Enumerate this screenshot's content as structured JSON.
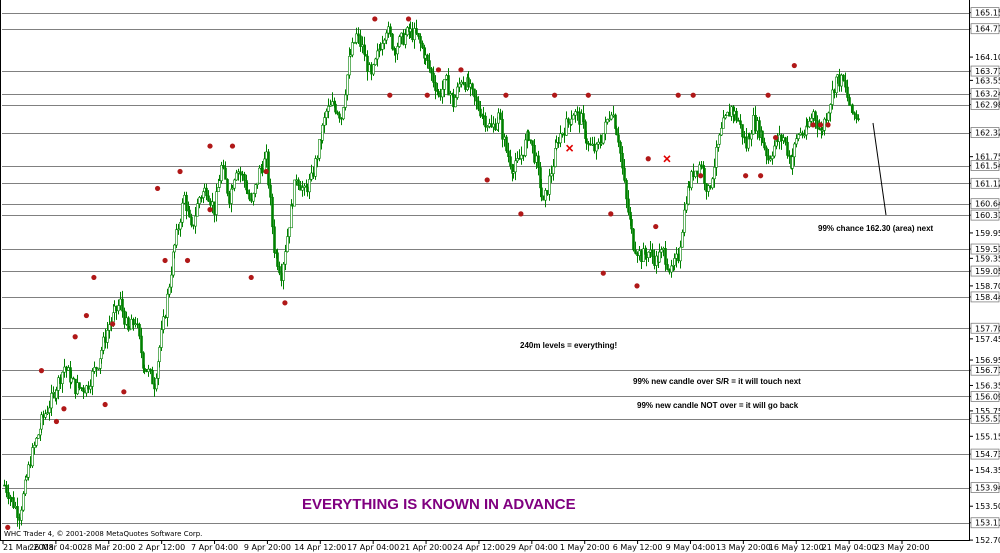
{
  "chart_data": {
    "type": "candlestick",
    "instrument_timeframe": "240m",
    "ylim": [
      152.75,
      165.4
    ],
    "grid": false,
    "y_ticks": [
      "165.15",
      "164.77",
      "164.10",
      "163.77",
      "163.55",
      "163.24",
      "162.98",
      "162.32",
      "161.75",
      "161.54",
      "161.12",
      "160.64",
      "160.37",
      "159.95",
      "159.57",
      "159.35",
      "159.05",
      "158.70",
      "158.44",
      "157.70",
      "157.45",
      "156.95",
      "156.71",
      "156.35",
      "156.09",
      "155.75",
      "155.57",
      "155.15",
      "154.73",
      "154.35",
      "153.94",
      "153.50",
      "153.11",
      "152.70"
    ],
    "x_ticks": [
      "21 Mar 2008",
      "26 Mar 04:00",
      "28 Mar 20:00",
      "2 Apr 12:00",
      "7 Apr 04:00",
      "9 Apr 20:00",
      "14 Apr 12:00",
      "17 Apr 04:00",
      "21 Apr 20:00",
      "24 Apr 12:00",
      "29 Apr 04:00",
      "1 May 20:00",
      "6 May 12:00",
      "9 May 04:00",
      "13 May 20:00",
      "16 May 12:00",
      "21 May 04:00",
      "23 May 20:00"
    ],
    "levels": [
      165.15,
      164.77,
      163.77,
      163.24,
      162.98,
      162.32,
      161.54,
      161.12,
      160.64,
      160.37,
      159.57,
      159.05,
      158.44,
      157.7,
      156.71,
      156.09,
      155.57,
      154.73,
      153.94,
      153.11
    ],
    "path_points": [
      [
        0,
        154.0
      ],
      [
        8,
        153.3
      ],
      [
        14,
        154.6
      ],
      [
        20,
        155.5
      ],
      [
        26,
        156.1
      ],
      [
        32,
        156.8
      ],
      [
        38,
        156.3
      ],
      [
        44,
        156.3
      ],
      [
        50,
        156.9
      ],
      [
        56,
        157.8
      ],
      [
        62,
        158.3
      ],
      [
        66,
        157.6
      ],
      [
        70,
        157.9
      ],
      [
        74,
        156.9
      ],
      [
        80,
        156.4
      ],
      [
        86,
        158.1
      ],
      [
        90,
        159.4
      ],
      [
        96,
        160.8
      ],
      [
        100,
        160.0
      ],
      [
        104,
        160.8
      ],
      [
        108,
        161.0
      ],
      [
        112,
        160.5
      ],
      [
        116,
        161.5
      ],
      [
        120,
        160.8
      ],
      [
        124,
        161.5
      ],
      [
        128,
        161.2
      ],
      [
        132,
        160.6
      ],
      [
        136,
        161.4
      ],
      [
        140,
        161.7
      ],
      [
        144,
        159.6
      ],
      [
        148,
        159.0
      ],
      [
        152,
        160.2
      ],
      [
        156,
        161.3
      ],
      [
        160,
        160.9
      ],
      [
        164,
        161.2
      ],
      [
        168,
        162.0
      ],
      [
        172,
        162.8
      ],
      [
        176,
        163.0
      ],
      [
        180,
        162.7
      ],
      [
        184,
        164.0
      ],
      [
        188,
        164.6
      ],
      [
        192,
        164.2
      ],
      [
        196,
        163.6
      ],
      [
        200,
        164.3
      ],
      [
        204,
        164.8
      ],
      [
        208,
        164.3
      ],
      [
        212,
        164.5
      ],
      [
        216,
        164.7
      ],
      [
        220,
        164.6
      ],
      [
        224,
        164.2
      ],
      [
        228,
        163.7
      ],
      [
        232,
        163.2
      ],
      [
        236,
        163.5
      ],
      [
        240,
        163.0
      ],
      [
        244,
        163.6
      ],
      [
        248,
        163.4
      ],
      [
        252,
        163.0
      ],
      [
        256,
        162.7
      ],
      [
        260,
        162.4
      ],
      [
        264,
        162.7
      ],
      [
        268,
        161.9
      ],
      [
        272,
        161.4
      ],
      [
        276,
        161.8
      ],
      [
        280,
        162.3
      ],
      [
        284,
        161.6
      ],
      [
        288,
        160.6
      ],
      [
        292,
        161.4
      ],
      [
        296,
        162.2
      ],
      [
        300,
        162.5
      ],
      [
        304,
        162.8
      ],
      [
        308,
        162.6
      ],
      [
        312,
        162.0
      ],
      [
        316,
        161.9
      ],
      [
        320,
        162.3
      ],
      [
        324,
        162.9
      ],
      [
        328,
        162.2
      ],
      [
        332,
        160.7
      ],
      [
        336,
        159.7
      ],
      [
        340,
        159.4
      ],
      [
        344,
        159.5
      ],
      [
        348,
        159.3
      ],
      [
        352,
        159.5
      ],
      [
        356,
        159.0
      ],
      [
        360,
        159.4
      ],
      [
        364,
        160.8
      ],
      [
        368,
        161.4
      ],
      [
        372,
        161.6
      ],
      [
        376,
        160.9
      ],
      [
        380,
        161.8
      ],
      [
        384,
        162.5
      ],
      [
        388,
        162.9
      ],
      [
        392,
        162.6
      ],
      [
        396,
        162.0
      ],
      [
        400,
        162.6
      ],
      [
        404,
        162.3
      ],
      [
        408,
        161.7
      ],
      [
        412,
        162.1
      ],
      [
        416,
        162.2
      ],
      [
        420,
        161.6
      ],
      [
        424,
        162.3
      ],
      [
        428,
        162.3
      ],
      [
        432,
        162.8
      ],
      [
        436,
        162.3
      ],
      [
        440,
        162.9
      ],
      [
        444,
        163.6
      ],
      [
        448,
        163.5
      ],
      [
        452,
        162.8
      ],
      [
        456,
        162.7
      ]
    ],
    "markers": [
      {
        "t": 2,
        "p": 153.0
      },
      {
        "t": 20,
        "p": 156.7
      },
      {
        "t": 28,
        "p": 155.5
      },
      {
        "t": 32,
        "p": 155.8
      },
      {
        "t": 38,
        "p": 157.5
      },
      {
        "t": 44,
        "p": 158.0
      },
      {
        "t": 48,
        "p": 158.9
      },
      {
        "t": 54,
        "p": 155.9
      },
      {
        "t": 58,
        "p": 157.8
      },
      {
        "t": 64,
        "p": 156.2
      },
      {
        "t": 82,
        "p": 161.0
      },
      {
        "t": 86,
        "p": 159.3
      },
      {
        "t": 94,
        "p": 161.4
      },
      {
        "t": 98,
        "p": 159.3
      },
      {
        "t": 110,
        "p": 162.0
      },
      {
        "t": 110,
        "p": 160.5
      },
      {
        "t": 122,
        "p": 162.0
      },
      {
        "t": 132,
        "p": 158.9
      },
      {
        "t": 140,
        "p": 161.4
      },
      {
        "t": 150,
        "p": 158.3
      },
      {
        "t": 198,
        "p": 165.0
      },
      {
        "t": 206,
        "p": 163.2
      },
      {
        "t": 216,
        "p": 165.0
      },
      {
        "t": 226,
        "p": 163.2
      },
      {
        "t": 232,
        "p": 163.8
      },
      {
        "t": 244,
        "p": 163.8
      },
      {
        "t": 258,
        "p": 161.2
      },
      {
        "t": 268,
        "p": 163.2
      },
      {
        "t": 276,
        "p": 160.4
      },
      {
        "t": 294,
        "p": 163.2
      },
      {
        "t": 312,
        "p": 163.2
      },
      {
        "t": 320,
        "p": 159.0
      },
      {
        "t": 324,
        "p": 160.4
      },
      {
        "t": 338,
        "p": 158.7
      },
      {
        "t": 344,
        "p": 161.7
      },
      {
        "t": 348,
        "p": 160.1
      },
      {
        "t": 360,
        "p": 163.2
      },
      {
        "t": 368,
        "p": 163.2
      },
      {
        "t": 372,
        "p": 161.3
      },
      {
        "t": 396,
        "p": 161.3
      },
      {
        "t": 404,
        "p": 161.3
      },
      {
        "t": 408,
        "p": 163.2
      },
      {
        "t": 412,
        "p": 162.2
      },
      {
        "t": 422,
        "p": 163.9
      },
      {
        "t": 432,
        "p": 162.5
      },
      {
        "t": 436,
        "p": 162.5
      },
      {
        "t": 440,
        "p": 162.5
      }
    ],
    "crosses": [
      {
        "t": 302,
        "p": 161.95
      },
      {
        "t": 354,
        "p": 161.7
      }
    ],
    "annotations": {
      "chance_note": "99% chance 162.30 (area) next",
      "levels_note": "240m levels = everything!",
      "touch_note": "99% new candle over S/R = it will touch next",
      "back_note": "99% new candle NOT over = it will go back",
      "headline": "EVERYTHING IS KNOWN IN ADVANCE"
    },
    "footer": "WHC Trader 4, © 2001-2008 MetaQuotes Software Corp.",
    "colors": {
      "background": "#ffffff",
      "level": "#808080",
      "candle": "#008000",
      "marker": "#b01818",
      "cross": "#e00000",
      "headline": "#800080",
      "frame": "#000000"
    }
  }
}
